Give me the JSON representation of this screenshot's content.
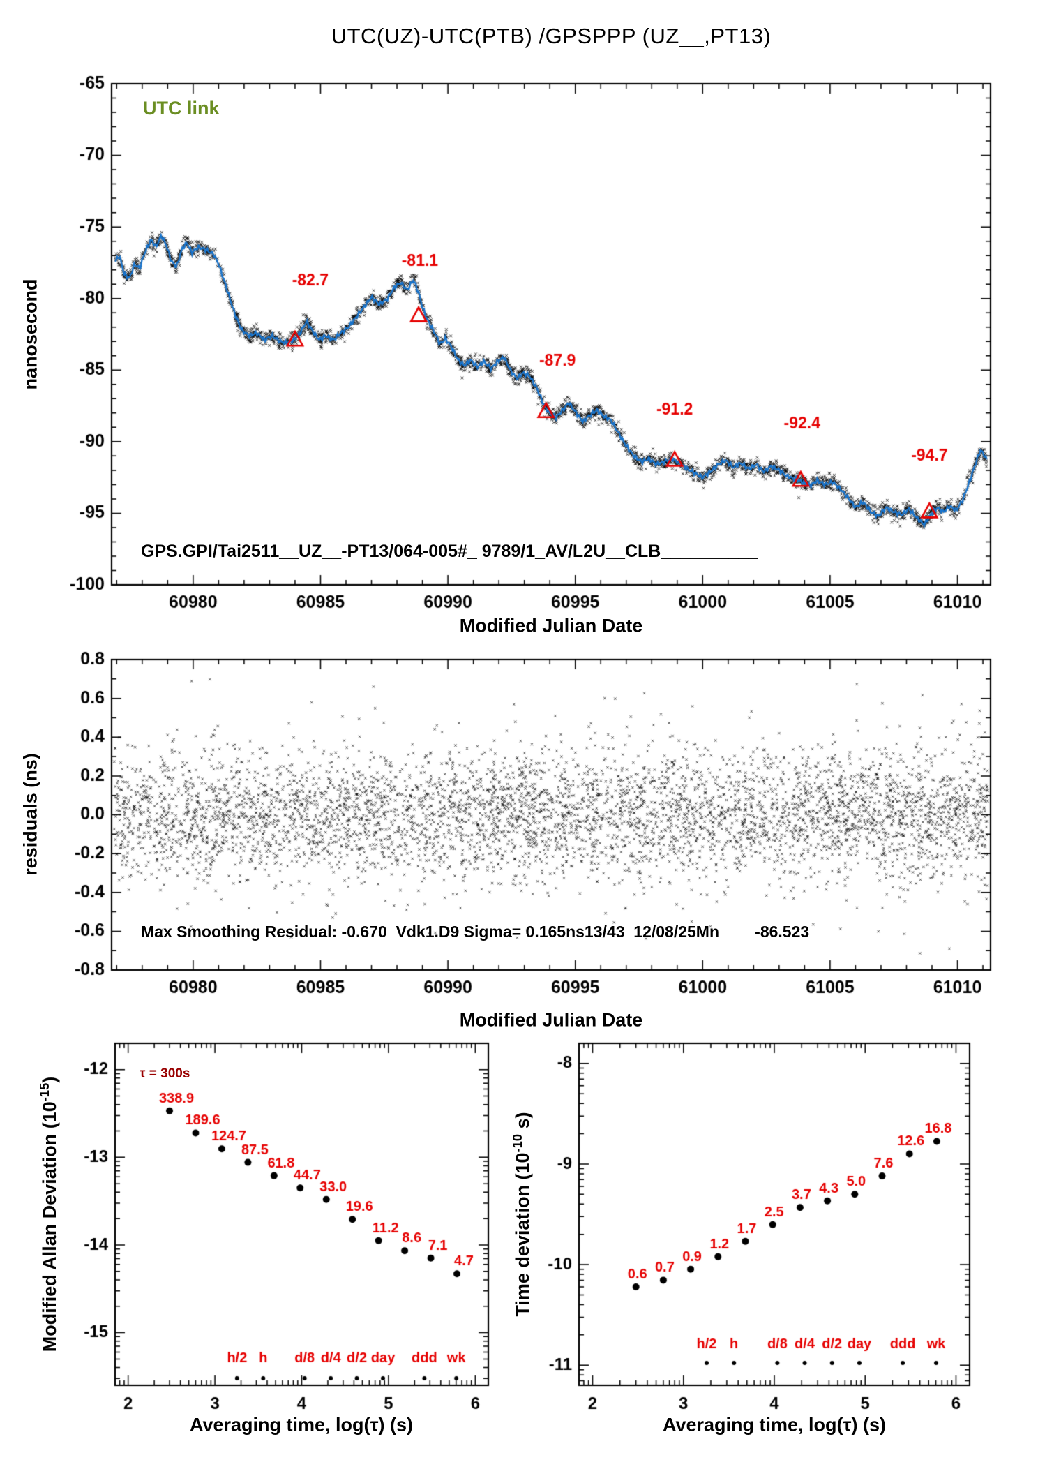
{
  "title": "UTC(UZ)-UTC(PTB)  /GPSPPP  (UZ__,PT13)",
  "colors": {
    "line_blue": "#1874CD",
    "annotation_red": "#E60000",
    "legend_green": "#6B8E23",
    "tau_note_red": "#990000",
    "frame_black": "#000000"
  },
  "chart_data": [
    {
      "type": "line",
      "name": "utc-link-time-series",
      "legend": "UTC link",
      "legend_position": "top-left",
      "station_label": "GPS.GPI/Tai2511__UZ__-PT13/064-005#_  9789/1_AV/L2U__CLB__________",
      "xlabel": "Modified Julian Date",
      "ylabel": "nanosecond",
      "xlim": [
        60976.8,
        61011.3
      ],
      "ylim": [
        -100,
        -65
      ],
      "xticks": [
        60980,
        60985,
        60990,
        60995,
        61000,
        61005,
        61010
      ],
      "yticks": [
        -65,
        -70,
        -75,
        -80,
        -85,
        -90,
        -95,
        -100
      ],
      "grid": false,
      "data_xrange": [
        60976.95,
        61011.15
      ],
      "noise_sigma_ns": 0.27,
      "scatter_count": 3200,
      "series_anchors": [
        [
          60976.95,
          -77.4
        ],
        [
          60977.1,
          -77.0
        ],
        [
          60977.3,
          -78.3
        ],
        [
          60977.5,
          -78.6
        ],
        [
          60977.7,
          -77.6
        ],
        [
          60977.9,
          -77.9
        ],
        [
          60978.1,
          -76.8
        ],
        [
          60978.35,
          -75.9
        ],
        [
          60978.55,
          -76.4
        ],
        [
          60978.75,
          -75.6
        ],
        [
          60978.95,
          -76.3
        ],
        [
          60979.15,
          -77.4
        ],
        [
          60979.35,
          -77.8
        ],
        [
          60979.55,
          -76.6
        ],
        [
          60979.75,
          -76.1
        ],
        [
          60979.95,
          -76.8
        ],
        [
          60980.2,
          -76.4
        ],
        [
          60980.5,
          -76.6
        ],
        [
          60980.8,
          -76.9
        ],
        [
          60981.0,
          -77.6
        ],
        [
          60981.3,
          -79.2
        ],
        [
          60981.6,
          -80.9
        ],
        [
          60981.9,
          -82.2
        ],
        [
          60982.2,
          -82.6
        ],
        [
          60982.5,
          -82.4
        ],
        [
          60982.8,
          -82.9
        ],
        [
          60983.1,
          -82.6
        ],
        [
          60983.4,
          -83.0
        ],
        [
          60983.7,
          -83.1
        ],
        [
          60983.95,
          -82.9
        ],
        [
          60984.2,
          -82.4
        ],
        [
          60984.45,
          -81.6
        ],
        [
          60984.7,
          -82.3
        ],
        [
          60984.95,
          -82.9
        ],
        [
          60985.2,
          -82.6
        ],
        [
          60985.5,
          -82.9
        ],
        [
          60985.8,
          -82.4
        ],
        [
          60986.1,
          -82.0
        ],
        [
          60986.4,
          -81.3
        ],
        [
          60986.7,
          -80.6
        ],
        [
          60987.0,
          -79.9
        ],
        [
          60987.3,
          -80.4
        ],
        [
          60987.6,
          -80.1
        ],
        [
          60987.9,
          -79.2
        ],
        [
          60988.15,
          -78.9
        ],
        [
          60988.4,
          -79.4
        ],
        [
          60988.65,
          -78.7
        ],
        [
          60988.85,
          -79.6
        ],
        [
          60989.0,
          -80.6
        ],
        [
          60989.2,
          -81.5
        ],
        [
          60989.45,
          -82.3
        ],
        [
          60989.7,
          -83.2
        ],
        [
          60989.9,
          -82.8
        ],
        [
          60990.15,
          -83.4
        ],
        [
          60990.4,
          -84.3
        ],
        [
          60990.65,
          -84.7
        ],
        [
          60990.9,
          -84.3
        ],
        [
          60991.15,
          -84.8
        ],
        [
          60991.4,
          -84.4
        ],
        [
          60991.7,
          -84.9
        ],
        [
          60991.95,
          -84.4
        ],
        [
          60992.2,
          -84.1
        ],
        [
          60992.45,
          -85.0
        ],
        [
          60992.7,
          -85.6
        ],
        [
          60992.95,
          -85.2
        ],
        [
          60993.2,
          -85.4
        ],
        [
          60993.5,
          -86.3
        ],
        [
          60993.8,
          -87.6
        ],
        [
          60994.0,
          -88.0
        ],
        [
          60994.25,
          -88.3
        ],
        [
          60994.5,
          -87.8
        ],
        [
          60994.75,
          -87.3
        ],
        [
          60995.0,
          -87.9
        ],
        [
          60995.3,
          -88.6
        ],
        [
          60995.6,
          -88.1
        ],
        [
          60995.85,
          -87.8
        ],
        [
          60996.1,
          -88.2
        ],
        [
          60996.4,
          -88.5
        ],
        [
          60996.7,
          -89.4
        ],
        [
          60997.0,
          -90.3
        ],
        [
          60997.3,
          -91.0
        ],
        [
          60997.6,
          -91.4
        ],
        [
          60997.9,
          -91.2
        ],
        [
          60998.2,
          -91.6
        ],
        [
          60998.5,
          -91.4
        ],
        [
          60998.8,
          -91.2
        ],
        [
          60999.1,
          -91.5
        ],
        [
          60999.4,
          -91.9
        ],
        [
          60999.7,
          -92.2
        ],
        [
          61000.0,
          -92.5
        ],
        [
          61000.3,
          -92.1
        ],
        [
          61000.6,
          -91.6
        ],
        [
          61000.9,
          -91.3
        ],
        [
          61001.2,
          -91.8
        ],
        [
          61001.5,
          -91.5
        ],
        [
          61001.8,
          -91.9
        ],
        [
          61002.1,
          -91.6
        ],
        [
          61002.4,
          -92.1
        ],
        [
          61002.7,
          -91.7
        ],
        [
          61003.0,
          -92.0
        ],
        [
          61003.3,
          -92.4
        ],
        [
          61003.6,
          -92.6
        ],
        [
          61003.9,
          -92.8
        ],
        [
          61004.2,
          -93.1
        ],
        [
          61004.5,
          -92.7
        ],
        [
          61004.8,
          -93.0
        ],
        [
          61005.1,
          -92.8
        ],
        [
          61005.4,
          -93.3
        ],
        [
          61005.7,
          -93.9
        ],
        [
          61006.0,
          -94.6
        ],
        [
          61006.3,
          -94.2
        ],
        [
          61006.6,
          -94.9
        ],
        [
          61006.9,
          -95.2
        ],
        [
          61007.2,
          -94.6
        ],
        [
          61007.5,
          -94.9
        ],
        [
          61007.8,
          -95.1
        ],
        [
          61008.1,
          -94.7
        ],
        [
          61008.4,
          -95.3
        ],
        [
          61008.7,
          -95.8
        ],
        [
          61008.95,
          -95.1
        ],
        [
          61009.2,
          -94.6
        ],
        [
          61009.45,
          -94.9
        ],
        [
          61009.7,
          -94.5
        ],
        [
          61009.95,
          -94.8
        ],
        [
          61010.2,
          -94.1
        ],
        [
          61010.45,
          -92.9
        ],
        [
          61010.7,
          -91.6
        ],
        [
          61010.9,
          -90.6
        ],
        [
          61011.05,
          -90.9
        ],
        [
          61011.15,
          -91.3
        ]
      ],
      "calibration_points": [
        {
          "x": 60984.0,
          "y": -82.9,
          "label": "-82.7",
          "label_x": 60984.6,
          "label_y": -79.1
        },
        {
          "x": 60988.85,
          "y": -81.2,
          "label": "-81.1",
          "label_x": 60988.9,
          "label_y": -77.7
        },
        {
          "x": 60993.85,
          "y": -87.9,
          "label": "-87.9",
          "label_x": 60994.3,
          "label_y": -84.7
        },
        {
          "x": 60998.9,
          "y": -91.3,
          "label": "-91.2",
          "label_x": 60998.9,
          "label_y": -88.1
        },
        {
          "x": 61003.85,
          "y": -92.7,
          "label": "-92.4",
          "label_x": 61003.9,
          "label_y": -89.1
        },
        {
          "x": 61008.9,
          "y": -94.9,
          "label": "-94.7",
          "label_x": 61008.9,
          "label_y": -91.3
        }
      ]
    },
    {
      "type": "scatter",
      "name": "smoothing-residuals",
      "xlabel": "Modified Julian Date",
      "ylabel": "residuals (ns)",
      "annotation": "Max Smoothing Residual: -0.670_Vdk1.D9  Sigma= 0.165ns13/43_12/08/25Mn____-86.523",
      "xlim": [
        60976.8,
        61011.3
      ],
      "ylim": [
        -0.8,
        0.8
      ],
      "xticks": [
        60980,
        60985,
        60990,
        60995,
        61000,
        61005,
        61010
      ],
      "yticks": [
        0.8,
        0.6,
        0.4,
        0.2,
        0,
        -0.2,
        -0.4,
        -0.6,
        -0.8
      ],
      "grid": false,
      "data_xrange": [
        60976.9,
        61011.2
      ],
      "sigma_ns": 0.165,
      "scatter_count": 5200
    },
    {
      "type": "scatter",
      "name": "modified-allan-deviation",
      "xlabel": "Averaging time, log(τ) (s)",
      "ylabel_prefix": "Modified Allan Deviation (10",
      "ylabel_sup": "-15",
      "ylabel_suffix": ")",
      "tau_note": "τ = 300s",
      "unit_exponent": -15,
      "xlim": [
        1.85,
        6.15
      ],
      "ylim": [
        -15.6,
        -11.7
      ],
      "xticks": [
        2,
        3,
        4,
        5,
        6
      ],
      "yticks": [
        -12,
        -13,
        -14,
        -15
      ],
      "grid": false,
      "taus": [
        300,
        600,
        1200,
        2400,
        4800,
        9600,
        19200,
        38400,
        76800,
        153600,
        307200,
        614400
      ],
      "values": [
        338.9,
        189.6,
        124.7,
        87.5,
        61.8,
        44.7,
        33.0,
        19.6,
        11.2,
        8.6,
        7.1,
        4.7
      ],
      "tau_markers": [
        {
          "label": "h/2",
          "tau": 1800
        },
        {
          "label": "h",
          "tau": 3600
        },
        {
          "label": "d/8",
          "tau": 10800
        },
        {
          "label": "d/4",
          "tau": 21600
        },
        {
          "label": "d/2",
          "tau": 43200
        },
        {
          "label": "day",
          "tau": 86400
        },
        {
          "label": "ddd",
          "tau": 259200
        },
        {
          "label": "wk",
          "tau": 604800
        }
      ]
    },
    {
      "type": "scatter",
      "name": "time-deviation",
      "xlabel": "Averaging time, log(τ) (s)",
      "ylabel_prefix": "Time deviation (10",
      "ylabel_sup": "-10",
      "ylabel_suffix": " s)",
      "unit_exponent": -10,
      "xlim": [
        1.85,
        6.15
      ],
      "ylim": [
        -11.2,
        -7.8
      ],
      "xticks": [
        2,
        3,
        4,
        5,
        6
      ],
      "yticks": [
        -8,
        -9,
        -10,
        -11
      ],
      "grid": false,
      "taus": [
        300,
        600,
        1200,
        2400,
        4800,
        9600,
        19200,
        38400,
        76800,
        153600,
        307200,
        614400
      ],
      "values": [
        0.6,
        0.7,
        0.9,
        1.2,
        1.7,
        2.5,
        3.7,
        4.3,
        5.0,
        7.6,
        12.6,
        16.8
      ],
      "tau_markers": [
        {
          "label": "h/2",
          "tau": 1800
        },
        {
          "label": "h",
          "tau": 3600
        },
        {
          "label": "d/8",
          "tau": 10800
        },
        {
          "label": "d/4",
          "tau": 21600
        },
        {
          "label": "d/2",
          "tau": 43200
        },
        {
          "label": "day",
          "tau": 86400
        },
        {
          "label": "ddd",
          "tau": 259200
        },
        {
          "label": "wk",
          "tau": 604800
        }
      ]
    }
  ]
}
